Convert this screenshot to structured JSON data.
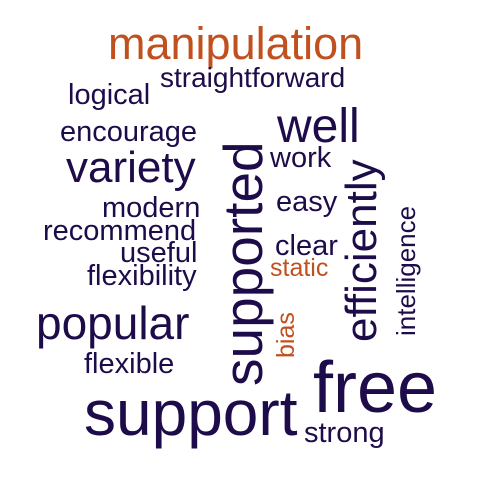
{
  "word_cloud": {
    "colors": {
      "primary": "#1d0b4a",
      "highlight": "#c0501e"
    },
    "words": {
      "manipulation": "manipulation",
      "straightforward": "straightforward",
      "logical": "logical",
      "well": "well",
      "encourage": "encourage",
      "variety": "variety",
      "work": "work",
      "supported": "supported",
      "efficiently": "efficiently",
      "modern": "modern",
      "easy": "easy",
      "recommend": "recommend",
      "useful": "useful",
      "clear": "clear",
      "intelligence": "intelligence",
      "static": "static",
      "flexibility": "flexibility",
      "popular": "popular",
      "bias": "bias",
      "flexible": "flexible",
      "free": "free",
      "support": "support",
      "strong": "strong"
    }
  }
}
